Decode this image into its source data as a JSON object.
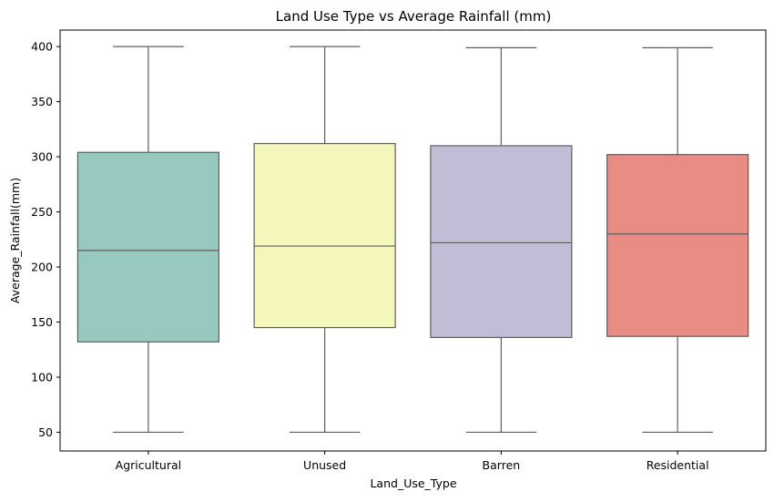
{
  "chart_data": {
    "type": "box",
    "title": "Land Use Type vs Average Rainfall (mm)",
    "xlabel": "Land_Use_Type",
    "ylabel": "Average_Rainfall(mm)",
    "ylim": [
      33,
      415
    ],
    "yticks": [
      50,
      100,
      150,
      200,
      250,
      300,
      350,
      400
    ],
    "grid": false,
    "categories": [
      "Agricultural",
      "Unused",
      "Barren",
      "Residential"
    ],
    "boxes": [
      {
        "category": "Agricultural",
        "min": 50,
        "q1": 132,
        "median": 215,
        "q3": 304,
        "max": 400,
        "color": "#97c9c1"
      },
      {
        "category": "Unused",
        "min": 50,
        "q1": 145,
        "median": 219,
        "q3": 312,
        "max": 400,
        "color": "#f5f6bb"
      },
      {
        "category": "Barren",
        "min": 50,
        "q1": 136,
        "median": 222,
        "q3": 310,
        "max": 399,
        "color": "#c1bdd7"
      },
      {
        "category": "Residential",
        "min": 50,
        "q1": 137,
        "median": 230,
        "q3": 302,
        "max": 399,
        "color": "#e98c83"
      }
    ],
    "line_color": "#5e5e5e"
  }
}
